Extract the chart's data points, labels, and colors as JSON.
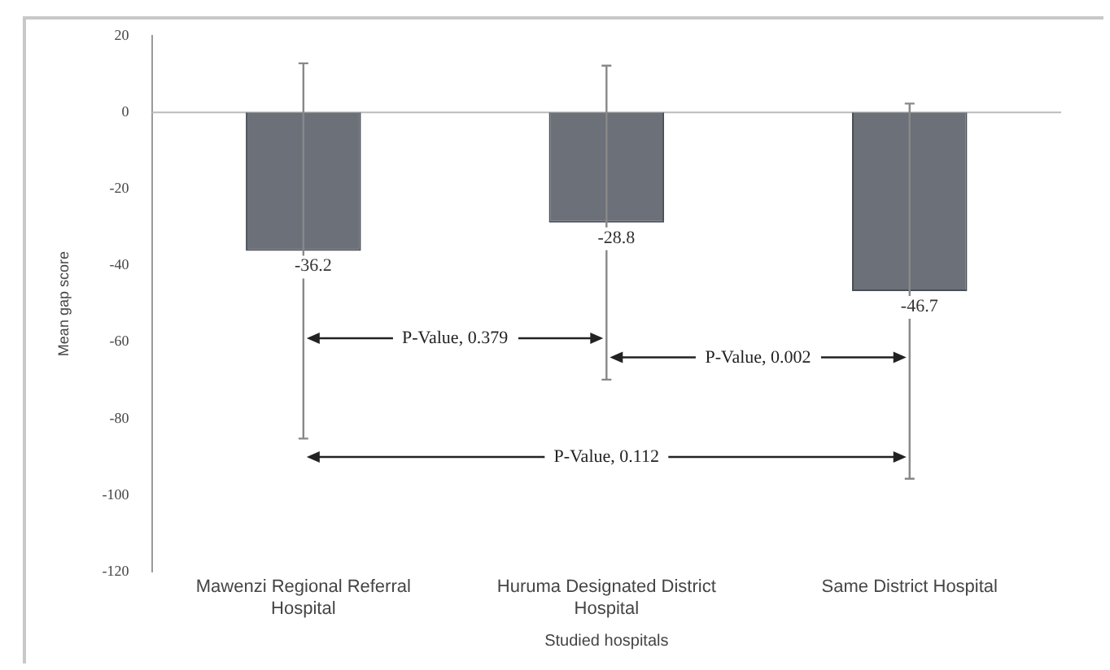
{
  "chart_data": {
    "type": "bar",
    "xlabel": "Studied hospitals",
    "ylabel": "Mean gap score",
    "categories": [
      "Mawenzi Regional Referral Hospital",
      "Huruma Designated District Hospital",
      "Same District Hospital"
    ],
    "values": [
      -36.2,
      -28.8,
      -46.7
    ],
    "errors": [
      49,
      41,
      49
    ],
    "color": "#6b7079",
    "ylim": [
      -120,
      20
    ],
    "yticks": [
      -120,
      -100,
      -80,
      -60,
      -40,
      -20,
      0,
      20
    ],
    "legend": false,
    "data_labels": true,
    "annotations": [
      "P-Value, 0.379",
      "P-Value, 0.002",
      "P-Value, 0.112"
    ]
  }
}
